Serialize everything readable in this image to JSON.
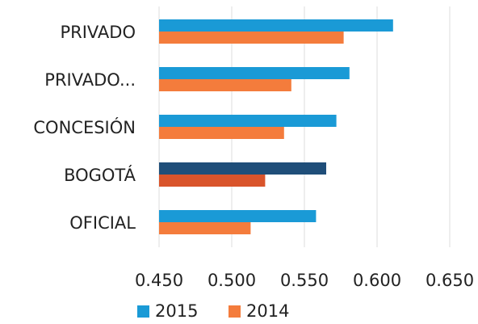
{
  "chart_data": {
    "type": "hbar",
    "categories": [
      "PRIVADO",
      "PRIVADO...",
      "CONCESIÓN",
      "BOGOTÁ",
      "OFICIAL"
    ],
    "series": [
      {
        "name": "2015",
        "color": "#1a9ad6",
        "point_colors": [
          "#1a9ad6",
          "#1a9ad6",
          "#1a9ad6",
          "#1f4e79",
          "#1a9ad6"
        ],
        "values": [
          0.611,
          0.581,
          0.572,
          0.565,
          0.558
        ]
      },
      {
        "name": "2014",
        "color": "#f47c3c",
        "point_colors": [
          "#f47c3c",
          "#f47c3c",
          "#f47c3c",
          "#d9542b",
          "#f47c3c"
        ],
        "values": [
          0.577,
          0.541,
          0.536,
          0.523,
          0.513
        ]
      }
    ],
    "xlim": [
      0.45,
      0.65
    ],
    "xticks": [
      {
        "value": 0.45,
        "label": "0.450"
      },
      {
        "value": 0.5,
        "label": "0.500"
      },
      {
        "value": 0.55,
        "label": "0.550"
      },
      {
        "value": 0.6,
        "label": "0.600"
      },
      {
        "value": 0.65,
        "label": "0.650"
      }
    ],
    "grid": true,
    "legend": "bottom"
  }
}
